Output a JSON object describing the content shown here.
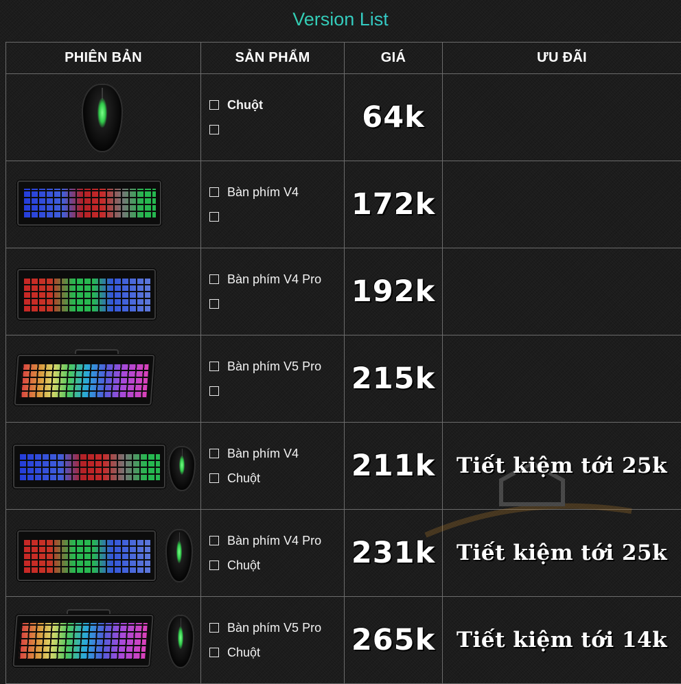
{
  "title": "Version List",
  "headers": {
    "version": "PHIÊN BẢN",
    "product": "SẢN PHẨM",
    "price": "GIÁ",
    "deal": "ƯU ĐÃI"
  },
  "rows": [
    {
      "image": "mouse",
      "product_1": "Chuột",
      "product_2": "",
      "price": "64k",
      "deal": ""
    },
    {
      "image": "keyboard-v4",
      "product_1": "Bàn phím V4",
      "product_2": "",
      "price": "172k",
      "deal": ""
    },
    {
      "image": "keyboard-v4-pro",
      "product_1": "Bàn phím V4 Pro",
      "product_2": "",
      "price": "192k",
      "deal": ""
    },
    {
      "image": "keyboard-v5-pro",
      "product_1": "Bàn phím V5 Pro",
      "product_2": "",
      "price": "215k",
      "deal": ""
    },
    {
      "image": "keyboard-v4-mouse",
      "product_1": "Bàn phím V4",
      "product_2": "Chuột",
      "price": "211k",
      "deal": "Tiết kiệm tới 25k"
    },
    {
      "image": "keyboard-v4-pro-mouse",
      "product_1": "Bàn phím V4 Pro",
      "product_2": "Chuột",
      "price": "231k",
      "deal": "Tiết kiệm tới 25k"
    },
    {
      "image": "keyboard-v5-pro-mouse",
      "product_1": "Bàn phím V5 Pro",
      "product_2": "Chuột",
      "price": "265k",
      "deal": "Tiết kiệm tới 14k"
    }
  ],
  "colors": {
    "title_gradient_start": "#2fe07a",
    "title_gradient_end": "#39b8ff",
    "background": "#1c1c1c",
    "grid": "#6c6c6c"
  }
}
